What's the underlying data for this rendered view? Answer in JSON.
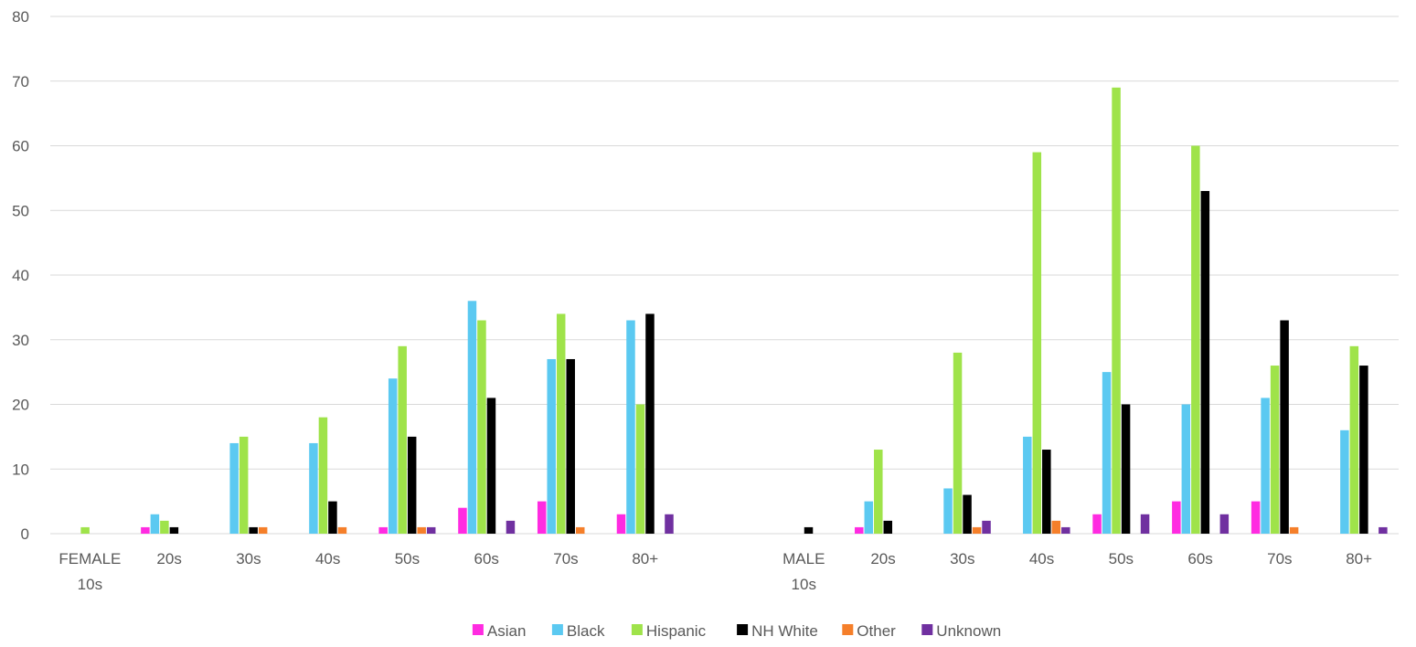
{
  "chart_data": {
    "type": "bar",
    "title": "",
    "xlabel": "",
    "ylabel": "",
    "ylim": [
      0,
      80
    ],
    "yticks": [
      0,
      10,
      20,
      30,
      40,
      50,
      60,
      70,
      80
    ],
    "grid": true,
    "legend_position": "bottom",
    "categories": [
      [
        "FEMALE",
        "10s"
      ],
      [
        "20s"
      ],
      [
        "30s"
      ],
      [
        "40s"
      ],
      [
        "50s"
      ],
      [
        "60s"
      ],
      [
        "70s"
      ],
      [
        "80+"
      ],
      [
        ""
      ],
      [
        "MALE",
        "10s"
      ],
      [
        "20s"
      ],
      [
        "30s"
      ],
      [
        "40s"
      ],
      [
        "50s"
      ],
      [
        "60s"
      ],
      [
        "70s"
      ],
      [
        "80+"
      ]
    ],
    "series": [
      {
        "name": "Asian",
        "color": "#FF2BE1",
        "values": [
          0,
          1,
          0,
          0,
          1,
          4,
          5,
          3,
          0,
          0,
          1,
          0,
          0,
          3,
          5,
          5,
          0
        ]
      },
      {
        "name": "Black",
        "color": "#5BC9F1",
        "values": [
          0,
          3,
          14,
          14,
          24,
          36,
          27,
          33,
          0,
          0,
          5,
          7,
          15,
          25,
          20,
          21,
          16
        ]
      },
      {
        "name": "Hispanic",
        "color": "#9FE34A",
        "values": [
          1,
          2,
          15,
          18,
          29,
          33,
          34,
          20,
          0,
          0,
          13,
          28,
          59,
          69,
          60,
          26,
          29
        ]
      },
      {
        "name": "NH White",
        "color": "#000000",
        "values": [
          0,
          1,
          1,
          5,
          15,
          21,
          27,
          34,
          0,
          1,
          2,
          6,
          13,
          20,
          53,
          33,
          26
        ]
      },
      {
        "name": "Other",
        "color": "#F57F2A",
        "values": [
          0,
          0,
          1,
          1,
          1,
          0,
          1,
          0,
          0,
          0,
          0,
          1,
          2,
          0,
          0,
          1,
          0
        ]
      },
      {
        "name": "Unknown",
        "color": "#7030A0",
        "values": [
          0,
          0,
          0,
          0,
          1,
          2,
          0,
          3,
          0,
          0,
          0,
          2,
          1,
          3,
          3,
          0,
          1
        ]
      }
    ]
  }
}
